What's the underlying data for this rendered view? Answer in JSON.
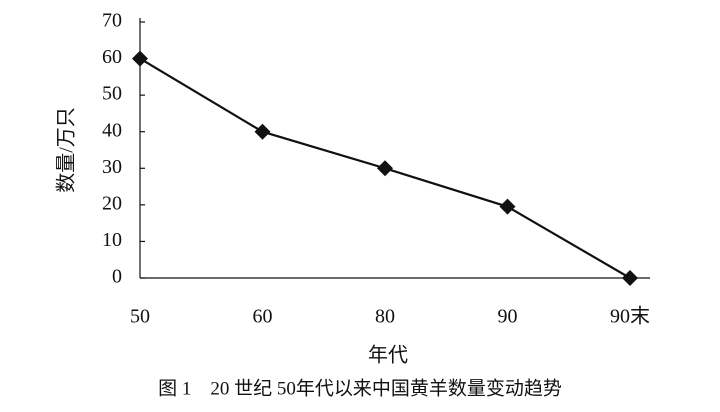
{
  "chart_data": {
    "type": "line",
    "y_label": "数量/万只",
    "x_label": "年代",
    "caption": "图 1　20 世纪 50年代以来中国黄羊数量变动趋势",
    "categories": [
      "50",
      "60",
      "80",
      "90",
      "90末"
    ],
    "values": [
      60,
      40,
      30,
      19.5,
      0
    ],
    "color": "#111111",
    "ylim": [
      0,
      70
    ],
    "yticks": [
      0,
      10,
      20,
      30,
      40,
      50,
      60,
      70
    ]
  }
}
